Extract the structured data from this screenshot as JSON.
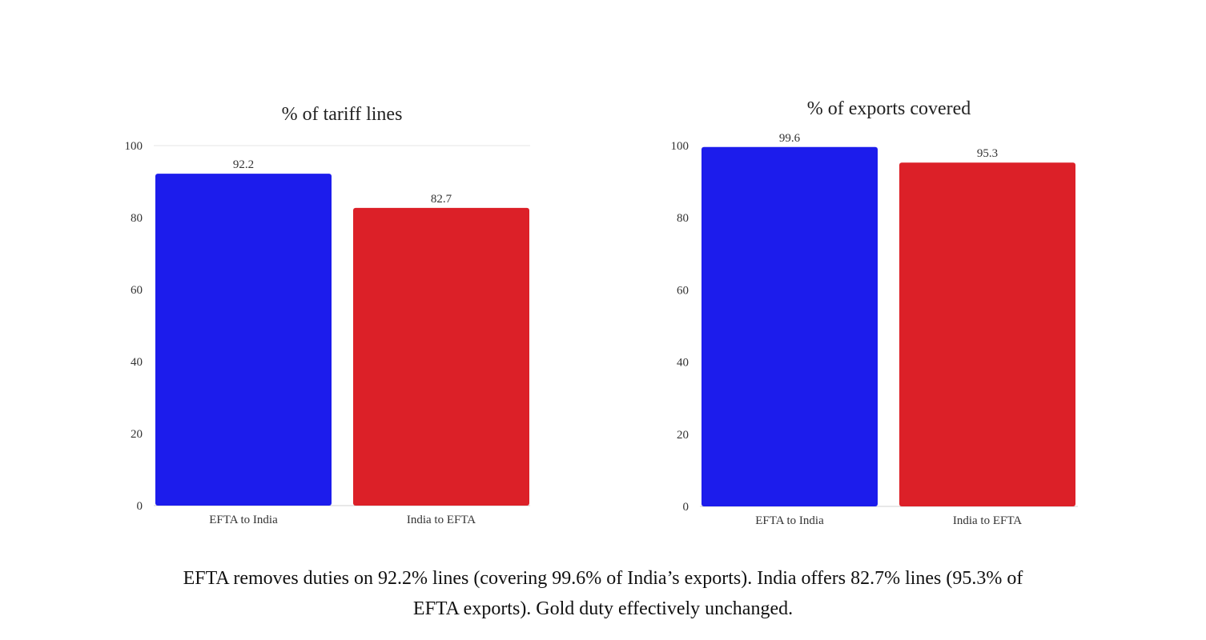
{
  "chart_data": [
    {
      "type": "bar",
      "title": "% of tariff lines",
      "categories": [
        "EFTA to India",
        "India to EFTA"
      ],
      "values": [
        92.2,
        82.7
      ],
      "data_labels": [
        "92.2",
        "82.7"
      ],
      "colors": [
        "#1c1cec",
        "#dc2028"
      ],
      "ylim": [
        0,
        100
      ],
      "yticks": [
        0,
        20,
        40,
        60,
        80,
        100
      ],
      "grid": "top line only",
      "xlabel": "",
      "ylabel": ""
    },
    {
      "type": "bar",
      "title": "% of exports covered",
      "categories": [
        "EFTA to India",
        "India to EFTA"
      ],
      "values": [
        99.6,
        95.3
      ],
      "data_labels": [
        "99.6",
        "95.3"
      ],
      "colors": [
        "#1c1cec",
        "#dc2028"
      ],
      "ylim": [
        0,
        100
      ],
      "yticks": [
        0,
        20,
        40,
        60,
        80,
        100
      ],
      "grid": "off",
      "xlabel": "",
      "ylabel": ""
    }
  ],
  "caption": {
    "line1": "EFTA removes duties on 92.2% lines (covering 99.6% of India’s exports). India offers 82.7% lines (95.3% of",
    "line2": "EFTA exports). Gold duty effectively unchanged."
  }
}
